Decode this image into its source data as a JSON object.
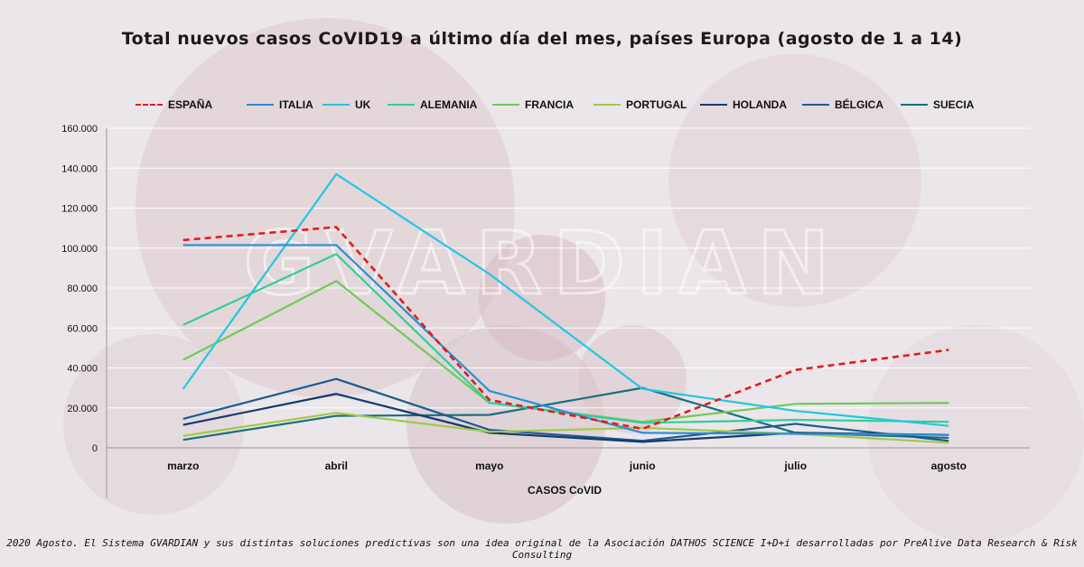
{
  "title": "Total nuevos casos CoVID19 a último día del mes, países Europa (agosto de 1 a 14)",
  "watermark": "GVARDIAN",
  "footer": "2020 Agosto. El Sistema GVARDIAN y sus distintas soluciones predictivas son una idea original de la Asociación DATHOS SCIENCE I+D+i desarrolladas por PreAlive Data Research & Risk Consulting",
  "chart_data": {
    "type": "line",
    "title": "Total nuevos casos CoVID19 a último día del mes, países Europa (agosto de 1 a 14)",
    "xlabel": "CASOS CoVID",
    "ylabel": "",
    "categories": [
      "marzo",
      "abril",
      "mayo",
      "junio",
      "julio",
      "agosto"
    ],
    "ylim": [
      0,
      160000
    ],
    "yticks": [
      "0",
      "20.000",
      "40.000",
      "60.000",
      "80.000",
      "100.000",
      "120.000",
      "140.000",
      "160.000"
    ],
    "grid": true,
    "legend_position": "top",
    "series": [
      {
        "name": "ESPAÑA",
        "color": "#e31a1c",
        "dashed": true,
        "values": [
          104000,
          110500,
          24000,
          9500,
          39000,
          49000
        ]
      },
      {
        "name": "ITALIA",
        "color": "#2a8fd6",
        "dashed": false,
        "values": [
          101500,
          101500,
          28500,
          7500,
          7000,
          6500
        ]
      },
      {
        "name": "UK",
        "color": "#22c8de",
        "dashed": false,
        "values": [
          29500,
          137000,
          87000,
          29500,
          18500,
          11000
        ]
      },
      {
        "name": "ALEMANIA",
        "color": "#2ecf9a",
        "dashed": false,
        "values": [
          61500,
          97000,
          22500,
          12500,
          14000,
          13000
        ]
      },
      {
        "name": "FRANCIA",
        "color": "#72c85a",
        "dashed": false,
        "values": [
          44000,
          83500,
          22500,
          13000,
          22000,
          22500
        ]
      },
      {
        "name": "PORTUGAL",
        "color": "#a3c94a",
        "dashed": false,
        "values": [
          6000,
          17500,
          8000,
          10000,
          7000,
          2500
        ]
      },
      {
        "name": "HOLANDA",
        "color": "#143a6e",
        "dashed": false,
        "values": [
          11500,
          27000,
          7500,
          3000,
          7500,
          6500
        ]
      },
      {
        "name": "BÉLGICA",
        "color": "#1b5c8e",
        "dashed": false,
        "values": [
          14500,
          34500,
          9000,
          3500,
          12000,
          3500
        ]
      },
      {
        "name": "SUECIA",
        "color": "#17707e",
        "dashed": false,
        "values": [
          4000,
          16000,
          16500,
          30000,
          7500,
          5000
        ]
      }
    ]
  }
}
